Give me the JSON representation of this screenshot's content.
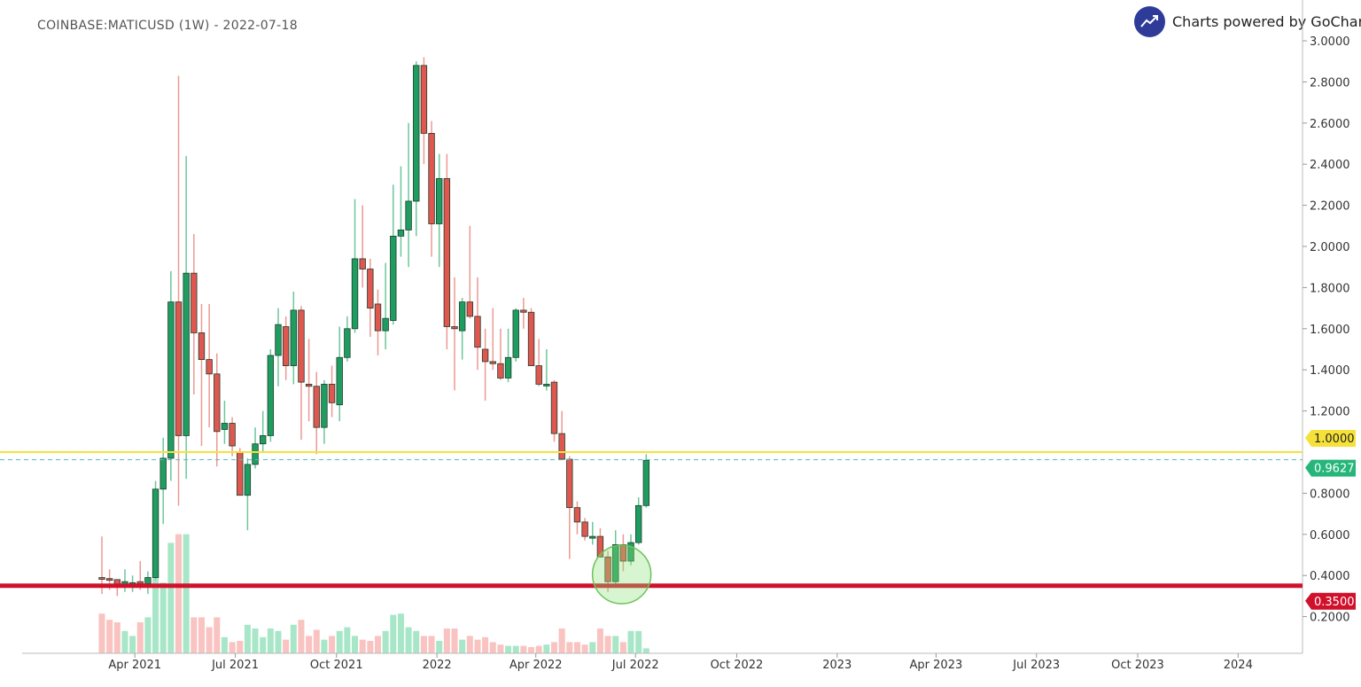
{
  "header": {
    "title": "COINBASE:MATICUSD (1W) - 2022-07-18"
  },
  "brand": {
    "text": "Charts powered by GoCharti",
    "icon": "trending-up-icon"
  },
  "chart_data": {
    "type": "candlestick",
    "title": "COINBASE:MATICUSD (1W) - 2022-07-18",
    "symbol": "COINBASE:MATICUSD",
    "interval": "1W",
    "ylim": [
      0,
      3.05
    ],
    "xlim": [
      -10.4,
      156.6
    ],
    "y_ticks": [
      "3.0000",
      "2.8000",
      "2.6000",
      "2.4000",
      "2.2000",
      "2.0000",
      "1.8000",
      "1.6000",
      "1.4000",
      "1.2000",
      "0.8000",
      "0.6000",
      "0.4000",
      "0.2000"
    ],
    "x_ticks": [
      {
        "label": "Apr 2021",
        "week": 4.3
      },
      {
        "label": "Jul 2021",
        "week": 17.4
      },
      {
        "label": "Oct 2021",
        "week": 30.6
      },
      {
        "label": "2022",
        "week": 43.7
      },
      {
        "label": "Apr 2022",
        "week": 56.6
      },
      {
        "label": "Jul 2022",
        "week": 69.6
      },
      {
        "label": "Oct 2022",
        "week": 82.8
      },
      {
        "label": "2023",
        "week": 95.9
      },
      {
        "label": "Apr 2023",
        "week": 108.8
      },
      {
        "label": "Jul 2023",
        "week": 121.9
      },
      {
        "label": "Oct 2023",
        "week": 135.1
      },
      {
        "label": "2024",
        "week": 148.2
      }
    ],
    "ohlc_fields": [
      "open",
      "high",
      "low",
      "close"
    ],
    "candles": [
      [
        0.39,
        0.59,
        0.31,
        0.385
      ],
      [
        0.385,
        0.43,
        0.33,
        0.38
      ],
      [
        0.38,
        0.38,
        0.3,
        0.35
      ],
      [
        0.355,
        0.43,
        0.32,
        0.37
      ],
      [
        0.36,
        0.4,
        0.32,
        0.365
      ],
      [
        0.37,
        0.47,
        0.33,
        0.36
      ],
      [
        0.36,
        0.42,
        0.31,
        0.39
      ],
      [
        0.39,
        0.86,
        0.38,
        0.82
      ],
      [
        0.82,
        1.07,
        0.65,
        0.97
      ],
      [
        0.97,
        1.88,
        0.86,
        1.73
      ],
      [
        1.73,
        2.83,
        0.74,
        1.08
      ],
      [
        1.08,
        2.44,
        0.87,
        1.87
      ],
      [
        1.87,
        2.06,
        1.28,
        1.58
      ],
      [
        1.58,
        1.72,
        1.03,
        1.45
      ],
      [
        1.45,
        1.72,
        1.12,
        1.38
      ],
      [
        1.38,
        1.48,
        0.93,
        1.1
      ],
      [
        1.11,
        1.25,
        1.04,
        1.14
      ],
      [
        1.14,
        1.17,
        0.98,
        1.03
      ],
      [
        1.0,
        1.02,
        0.79,
        0.79
      ],
      [
        0.79,
        0.97,
        0.62,
        0.94
      ],
      [
        0.94,
        1.12,
        0.92,
        1.04
      ],
      [
        1.04,
        1.2,
        1.0,
        1.08
      ],
      [
        1.08,
        1.5,
        1.05,
        1.47
      ],
      [
        1.47,
        1.7,
        1.32,
        1.62
      ],
      [
        1.61,
        1.66,
        1.35,
        1.42
      ],
      [
        1.42,
        1.78,
        1.33,
        1.69
      ],
      [
        1.69,
        1.71,
        1.06,
        1.34
      ],
      [
        1.33,
        1.55,
        1.15,
        1.32
      ],
      [
        1.32,
        1.39,
        0.99,
        1.12
      ],
      [
        1.12,
        1.35,
        1.04,
        1.33
      ],
      [
        1.33,
        1.42,
        1.17,
        1.24
      ],
      [
        1.23,
        1.61,
        1.15,
        1.46
      ],
      [
        1.46,
        1.66,
        1.44,
        1.6
      ],
      [
        1.6,
        2.23,
        1.58,
        1.94
      ],
      [
        1.94,
        2.2,
        1.8,
        1.89
      ],
      [
        1.89,
        1.94,
        1.56,
        1.7
      ],
      [
        1.72,
        1.79,
        1.47,
        1.59
      ],
      [
        1.59,
        1.92,
        1.5,
        1.65
      ],
      [
        1.64,
        2.3,
        1.62,
        2.05
      ],
      [
        2.05,
        2.39,
        1.95,
        2.08
      ],
      [
        2.08,
        2.6,
        1.9,
        2.22
      ],
      [
        2.22,
        2.9,
        2.05,
        2.88
      ],
      [
        2.88,
        2.92,
        2.4,
        2.55
      ],
      [
        2.55,
        2.61,
        1.95,
        2.11
      ],
      [
        2.11,
        2.45,
        1.9,
        2.33
      ],
      [
        2.33,
        2.45,
        1.5,
        1.61
      ],
      [
        1.61,
        1.85,
        1.3,
        1.6
      ],
      [
        1.59,
        1.75,
        1.45,
        1.73
      ],
      [
        1.73,
        2.1,
        1.65,
        1.66
      ],
      [
        1.66,
        1.85,
        1.4,
        1.51
      ],
      [
        1.5,
        1.6,
        1.25,
        1.44
      ],
      [
        1.44,
        1.7,
        1.4,
        1.43
      ],
      [
        1.43,
        1.6,
        1.35,
        1.36
      ],
      [
        1.36,
        1.6,
        1.34,
        1.46
      ],
      [
        1.46,
        1.7,
        1.44,
        1.69
      ],
      [
        1.69,
        1.75,
        1.6,
        1.68
      ],
      [
        1.68,
        1.7,
        1.42,
        1.42
      ],
      [
        1.42,
        1.55,
        1.32,
        1.33
      ],
      [
        1.33,
        1.5,
        1.3,
        1.33
      ],
      [
        1.34,
        1.35,
        1.05,
        1.09
      ],
      [
        1.09,
        1.2,
        0.98,
        0.965
      ],
      [
        0.965,
        0.98,
        0.48,
        0.73
      ],
      [
        0.73,
        0.76,
        0.6,
        0.66
      ],
      [
        0.66,
        0.68,
        0.57,
        0.59
      ],
      [
        0.59,
        0.66,
        0.55,
        0.59
      ],
      [
        0.59,
        0.63,
        0.49,
        0.49
      ],
      [
        0.49,
        0.52,
        0.32,
        0.37
      ],
      [
        0.37,
        0.62,
        0.36,
        0.55
      ],
      [
        0.55,
        0.6,
        0.42,
        0.47
      ],
      [
        0.47,
        0.6,
        0.45,
        0.56
      ],
      [
        0.56,
        0.78,
        0.55,
        0.74
      ],
      [
        0.74,
        0.99,
        0.73,
        0.96
      ]
    ],
    "volume_relative": [
      32,
      27,
      25,
      18,
      14,
      25,
      29,
      82,
      57,
      89,
      96,
      96,
      29,
      29,
      21,
      29,
      13,
      9,
      10,
      23,
      20,
      13,
      20,
      18,
      11,
      23,
      27,
      14,
      19,
      11,
      14,
      18,
      21,
      14,
      11,
      10,
      14,
      18,
      31,
      32,
      21,
      18,
      14,
      14,
      10,
      20,
      20,
      11,
      14,
      11,
      13,
      9,
      7,
      6,
      6,
      6,
      5,
      6,
      7,
      9,
      20,
      9,
      9,
      7,
      9,
      20,
      14,
      14,
      9,
      18,
      18,
      4
    ],
    "levels": [
      {
        "name": "resistance",
        "value": 1.0,
        "label": "1.0000",
        "color": "#f5e13a"
      },
      {
        "name": "last-price",
        "value": 0.9627,
        "label": "0.9627",
        "color": "#26b67a"
      },
      {
        "name": "support",
        "value": 0.35,
        "label": "0.3500",
        "color": "#d0112b"
      }
    ],
    "highlight": {
      "shape": "circle",
      "center_week": 67.8,
      "center_price": 0.405
    },
    "colors": {
      "up": "#1f9d60",
      "down": "#e0574f",
      "up_volume": "#a8e6c8",
      "down_volume": "#f8c3c0",
      "border": "#1e3b2b"
    }
  }
}
